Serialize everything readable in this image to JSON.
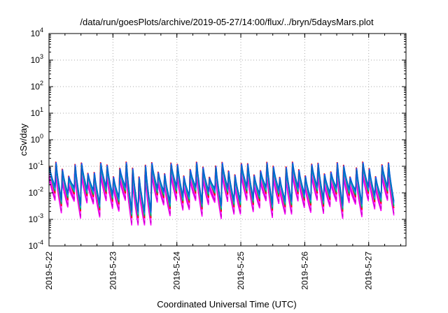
{
  "chart_data": {
    "type": "line",
    "title": "/data/run/goesPlots/archive/2019-05-27/14:00/flux/../bryn/5daysMars.plot",
    "xlabel": "Coordinated Universal Time (UTC)",
    "ylabel": "cSv/day",
    "y_scale": "log",
    "ylim": [
      0.0001,
      10000
    ],
    "xlim": [
      "2019-05-22T00:00",
      "2019-05-27T14:00"
    ],
    "y_ticks": [
      {
        "value": 0.0001,
        "base": "10",
        "exp": "-4"
      },
      {
        "value": 0.001,
        "base": "10",
        "exp": "-3"
      },
      {
        "value": 0.01,
        "base": "10",
        "exp": "-2"
      },
      {
        "value": 0.1,
        "base": "10",
        "exp": "-1"
      },
      {
        "value": 1,
        "base": "10",
        "exp": "0"
      },
      {
        "value": 10,
        "base": "10",
        "exp": "1"
      },
      {
        "value": 100,
        "base": "10",
        "exp": "2"
      },
      {
        "value": 1000,
        "base": "10",
        "exp": "3"
      },
      {
        "value": 10000,
        "base": "10",
        "exp": "4"
      }
    ],
    "x_ticks": [
      {
        "value": "2019-05-22T00:00",
        "label": "2019-5-22"
      },
      {
        "value": "2019-05-23T00:00",
        "label": "2019-5-23"
      },
      {
        "value": "2019-05-24T00:00",
        "label": "2019-5-24"
      },
      {
        "value": "2019-05-25T00:00",
        "label": "2019-5-25"
      },
      {
        "value": "2019-05-26T00:00",
        "label": "2019-5-26"
      },
      {
        "value": "2019-05-27T00:00",
        "label": "2019-5-27"
      }
    ],
    "grid": true,
    "legend": "none",
    "pattern": {
      "period_hours": 2.4,
      "cycles": 54,
      "start": "2019-05-22T00:00",
      "peak_min": 0.04,
      "peak_max": 0.15,
      "trough_min": 0.0012,
      "trough_max": 0.006,
      "dip_windows": [
        {
          "start": "2019-05-23T06:00",
          "end": "2019-05-23T13:00",
          "value": 0.0007
        },
        {
          "start": "2019-05-24T20:00",
          "end": "2019-05-24T21:00",
          "value": 0.0018
        },
        {
          "start": "2019-05-25T16:00",
          "end": "2019-05-25T17:00",
          "value": 0.0018
        }
      ]
    },
    "series": [
      {
        "color": "#ff00ff",
        "peak_factor": 0.42,
        "trough_factor": 0.85
      },
      {
        "color": "#cc00cc",
        "peak_factor": 0.55,
        "trough_factor": 1.0
      },
      {
        "color": "#ff33ff",
        "peak_factor": 0.65,
        "trough_factor": 1.3
      },
      {
        "color": "#ff0000",
        "peak_factor": 1.0,
        "trough_factor": 1.6
      },
      {
        "color": "#00aa55",
        "peak_factor": 0.85,
        "trough_factor": 1.9
      },
      {
        "color": "#00bbbb",
        "peak_factor": 0.75,
        "trough_factor": 2.2
      },
      {
        "color": "#2255ff",
        "peak_factor": 0.95,
        "trough_factor": 2.6
      },
      {
        "color": "#0066cc",
        "peak_factor": 0.8,
        "trough_factor": 3.0
      }
    ]
  }
}
